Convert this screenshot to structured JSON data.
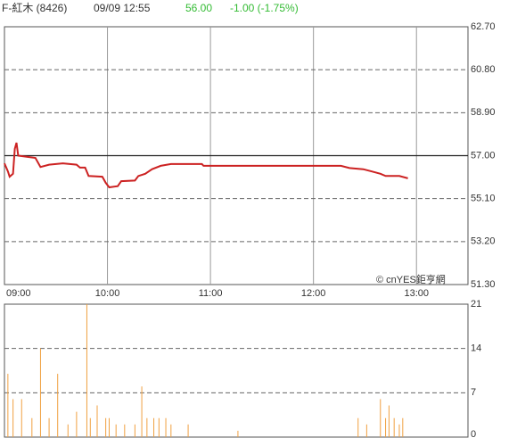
{
  "header": {
    "name": "F-紅木 (8426)",
    "time": "09/09 12:55",
    "price": "56.00",
    "change": "-1.00 (-1.75%)"
  },
  "watermark": "© cnYES鉅亨網",
  "chart_data": [
    {
      "type": "line",
      "color": "#cc2222",
      "reference": 57,
      "x": [
        0,
        2,
        3,
        5,
        6,
        7,
        8,
        13,
        18,
        21,
        26,
        34,
        42,
        44,
        47,
        49,
        57,
        59,
        61,
        66,
        68,
        76,
        78,
        82,
        86,
        91,
        97,
        115,
        116,
        154,
        196,
        201,
        209,
        214,
        219,
        222,
        230,
        235
      ],
      "values": [
        56.66,
        56.3,
        56.07,
        56.2,
        57.3,
        57.57,
        57.0,
        56.95,
        56.9,
        56.5,
        56.6,
        56.66,
        56.6,
        56.47,
        56.47,
        56.1,
        56.07,
        55.8,
        55.6,
        55.65,
        55.87,
        55.9,
        56.1,
        56.2,
        56.4,
        56.55,
        56.63,
        56.63,
        56.55,
        56.55,
        56.55,
        56.45,
        56.4,
        56.3,
        56.2,
        56.1,
        56.1,
        56.0
      ],
      "xlim": [
        0,
        270
      ],
      "xticks": [
        {
          "value": 0,
          "label": "09:00"
        },
        {
          "value": 60,
          "label": "10:00"
        },
        {
          "value": 120,
          "label": "11:00"
        },
        {
          "value": 180,
          "label": "12:00"
        },
        {
          "value": 240,
          "label": "13:00"
        }
      ],
      "ylim": [
        51.3,
        62.7
      ],
      "yticks": [
        {
          "value": 62.7,
          "label": "62.70"
        },
        {
          "value": 60.8,
          "label": "60.80"
        },
        {
          "value": 58.9,
          "label": "58.90"
        },
        {
          "value": 57,
          "label": "57.00"
        },
        {
          "value": 55.1,
          "label": "55.10"
        },
        {
          "value": 53.2,
          "label": "53.20"
        },
        {
          "value": 51.3,
          "label": "51.30"
        }
      ]
    },
    {
      "type": "bar",
      "color": "#f0a040",
      "x": [
        2,
        5,
        10,
        16,
        21,
        26,
        31,
        37,
        42,
        48,
        50,
        54,
        59,
        61,
        65,
        70,
        76,
        80,
        83,
        87,
        90,
        94,
        97,
        107,
        136,
        206,
        211,
        219,
        222,
        224,
        227,
        230,
        232
      ],
      "values": [
        10,
        6,
        6,
        3,
        14,
        3,
        10,
        2,
        4,
        21,
        3,
        5,
        3,
        3,
        2,
        2,
        2,
        8,
        3,
        3,
        3,
        3,
        2,
        2,
        1,
        3,
        2,
        6,
        3,
        5,
        3,
        2,
        3
      ],
      "xlim": [
        0,
        270
      ],
      "ylim": [
        0,
        21
      ],
      "yticks": [
        0,
        7,
        14,
        21
      ]
    }
  ]
}
